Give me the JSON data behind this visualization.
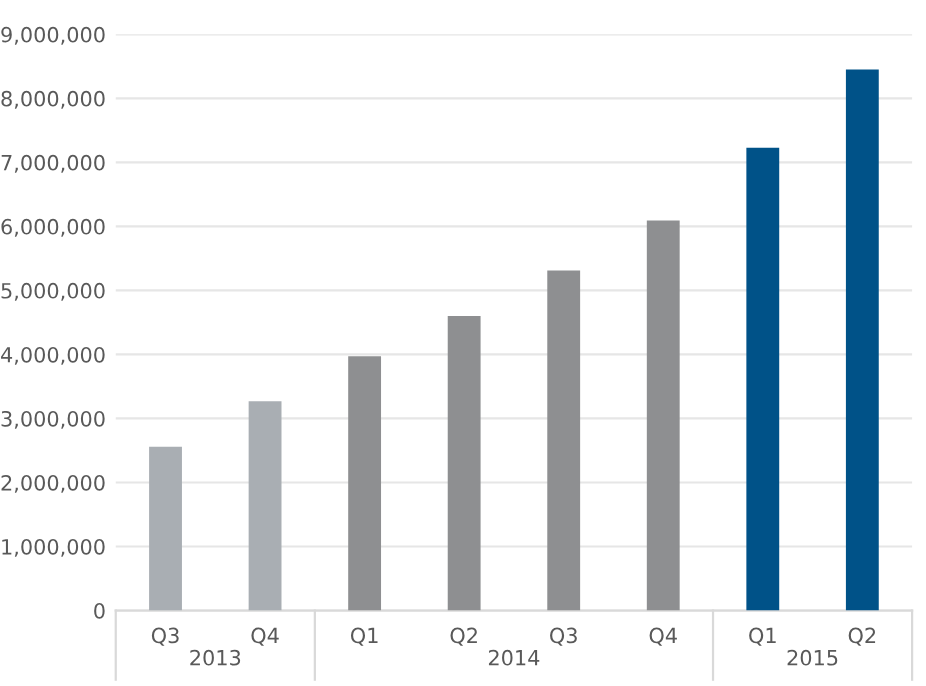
{
  "chart_data": {
    "type": "bar",
    "categories": [
      "Q3",
      "Q4",
      "Q1",
      "Q2",
      "Q3",
      "Q4",
      "Q1",
      "Q2"
    ],
    "values": [
      2560000,
      3270000,
      3970000,
      4600000,
      5310000,
      6090000,
      7230000,
      8450000
    ],
    "colors": [
      "#a9aeb3",
      "#a9aeb3",
      "#8e8f91",
      "#8e8f91",
      "#8e8f91",
      "#8e8f91",
      "#005288",
      "#005288"
    ],
    "annotations": [
      "2013",
      "2014",
      "2015"
    ],
    "ylim": [
      0,
      9000000
    ],
    "yticks": [
      {
        "value": 0,
        "label": "0"
      },
      {
        "value": 1000000,
        "label": "1,000,000"
      },
      {
        "value": 2000000,
        "label": "2,000,000"
      },
      {
        "value": 3000000,
        "label": "3,000,000"
      },
      {
        "value": 4000000,
        "label": "4,000,000"
      },
      {
        "value": 5000000,
        "label": "5,000,000"
      },
      {
        "value": 6000000,
        "label": "6,000,000"
      },
      {
        "value": 7000000,
        "label": "7,000,000"
      },
      {
        "value": 8000000,
        "label": "8,000,000"
      },
      {
        "value": 9000000,
        "label": "9,000,000"
      }
    ],
    "grid": "y",
    "legend": false
  }
}
